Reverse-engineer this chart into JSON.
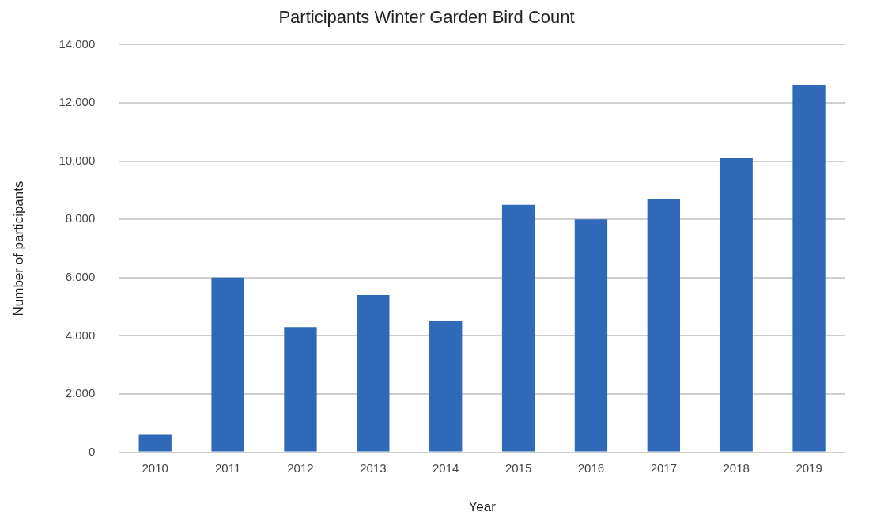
{
  "chart_data": {
    "type": "bar",
    "title": "Participants Winter Garden Bird Count",
    "xlabel": "Year",
    "ylabel": "Number of participants",
    "categories": [
      "2010",
      "2011",
      "2012",
      "2013",
      "2014",
      "2015",
      "2016",
      "2017",
      "2018",
      "2019"
    ],
    "values": [
      600,
      6000,
      4300,
      5400,
      4500,
      8500,
      8000,
      8700,
      10100,
      12600
    ],
    "color": "#2f69b8",
    "ylim": [
      0,
      14000
    ],
    "yticks": [
      {
        "value": 0,
        "label": "0"
      },
      {
        "value": 2000,
        "label": "2.000"
      },
      {
        "value": 4000,
        "label": "4.000"
      },
      {
        "value": 6000,
        "label": "6.000"
      },
      {
        "value": 8000,
        "label": "8.000"
      },
      {
        "value": 10000,
        "label": "10.000"
      },
      {
        "value": 12000,
        "label": "12.000"
      },
      {
        "value": 14000,
        "label": "14.000"
      }
    ],
    "grid": "y",
    "legend": false
  }
}
